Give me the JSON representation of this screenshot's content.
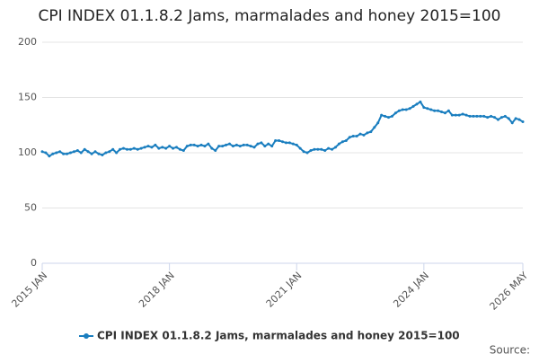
{
  "chart_data": {
    "type": "line",
    "title": "CPI INDEX 01.1.8.2 Jams, marmalades and honey 2015=100",
    "categories": [
      "2015 JAN",
      null,
      null,
      null,
      null,
      null,
      null,
      null,
      null,
      null,
      null,
      null,
      null,
      null,
      null,
      null,
      null,
      null,
      null,
      null,
      null,
      null,
      null,
      null,
      null,
      null,
      null,
      null,
      null,
      null,
      null,
      null,
      null,
      null,
      null,
      null,
      "2018 JAN",
      null,
      null,
      null,
      null,
      null,
      null,
      null,
      null,
      null,
      null,
      null,
      null,
      null,
      null,
      null,
      null,
      null,
      null,
      null,
      null,
      null,
      null,
      null,
      null,
      null,
      null,
      null,
      null,
      null,
      null,
      null,
      null,
      null,
      null,
      null,
      "2021 JAN",
      null,
      null,
      null,
      null,
      null,
      null,
      null,
      null,
      null,
      null,
      null,
      null,
      null,
      null,
      null,
      null,
      null,
      null,
      null,
      null,
      null,
      null,
      null,
      null,
      null,
      null,
      null,
      null,
      null,
      null,
      null,
      null,
      null,
      null,
      null,
      "2024 JAN",
      null,
      null,
      null,
      null,
      null,
      null,
      null,
      null,
      null,
      null,
      null,
      null,
      null,
      null,
      null,
      null,
      null,
      null,
      null,
      null,
      null,
      null,
      null,
      null,
      null,
      null,
      null,
      "2026 MAY"
    ],
    "series": [
      {
        "name": "CPI INDEX 01.1.8.2 Jams, marmalades and honey 2015=100",
        "color": "#1a7ebf",
        "values": [
          101,
          100,
          97,
          99,
          100,
          101,
          99,
          99,
          100,
          101,
          102,
          100,
          103,
          101,
          99,
          101,
          99,
          98,
          100,
          101,
          103,
          100,
          103,
          104,
          103,
          103,
          104,
          103,
          104,
          105,
          106,
          105,
          107,
          104,
          105,
          104,
          106,
          104,
          105,
          103,
          102,
          106,
          107,
          107,
          106,
          107,
          106,
          108,
          104,
          102,
          106,
          106,
          107,
          108,
          106,
          107,
          106,
          107,
          107,
          106,
          105,
          108,
          109,
          106,
          108,
          106,
          111,
          111,
          110,
          109,
          109,
          108,
          107,
          104,
          101,
          100,
          102,
          103,
          103,
          103,
          102,
          104,
          103,
          105,
          108,
          110,
          111,
          114,
          115,
          115,
          117,
          116,
          118,
          119,
          123,
          127,
          134,
          133,
          132,
          133,
          136,
          138,
          139,
          139,
          140,
          142,
          144,
          146,
          141,
          140,
          139,
          138,
          138,
          137,
          136,
          138,
          134,
          134,
          134,
          135,
          134,
          133,
          133,
          133,
          133,
          133,
          132,
          133,
          132,
          130,
          132,
          133,
          131,
          127,
          131,
          130,
          128
        ]
      }
    ],
    "ylim": [
      0,
      200
    ],
    "yticks": [
      0,
      50,
      100,
      150,
      200
    ],
    "grid": true,
    "source": "Source:"
  }
}
